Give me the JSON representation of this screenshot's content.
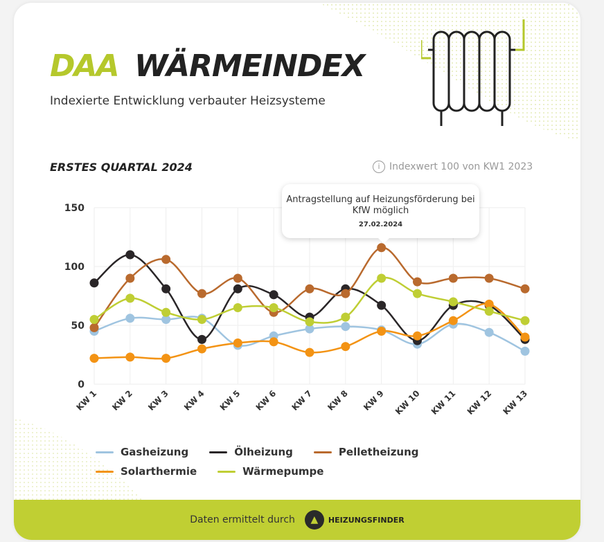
{
  "header": {
    "logo": "DAA",
    "title": "WÄRMEINDEX",
    "subtitle": "Indexierte Entwicklung verbauter Heizsysteme"
  },
  "section_title": "ERSTES QUARTAL 2024",
  "note": {
    "icon": "info-icon",
    "text": "Indexwert 100 von KW1 2023"
  },
  "tooltip": {
    "text": "Antragstellung auf Heizungsförderung bei KfW möglich",
    "date": "27.02.2024"
  },
  "footer": {
    "text": "Daten ermittelt durch",
    "brand": "HEIZUNGSFINDER",
    "icon": "flame-icon"
  },
  "chart_data": {
    "type": "line",
    "smooth": true,
    "ylim": [
      0,
      150
    ],
    "yticks": [
      0,
      50,
      100,
      150
    ],
    "grid": true,
    "legend": "bottom",
    "categories": [
      "KW 1",
      "KW 2",
      "KW 3",
      "KW 4",
      "KW 5",
      "KW 6",
      "KW 7",
      "KW 8",
      "KW 9",
      "KW 10",
      "KW 11",
      "KW 12",
      "KW 13"
    ],
    "series": [
      {
        "name": "Gasheizung",
        "color": "#9fc4e0",
        "values": [
          45,
          56,
          55,
          56,
          33,
          41,
          47,
          49,
          46,
          34,
          51,
          44,
          28
        ]
      },
      {
        "name": "Ölheizung",
        "color": "#2a2628",
        "values": [
          86,
          110,
          81,
          38,
          81,
          76,
          57,
          81,
          67,
          37,
          67,
          67,
          38
        ]
      },
      {
        "name": "Pelletheizung",
        "color": "#b96a2e",
        "values": [
          48,
          90,
          106,
          77,
          90,
          61,
          81,
          77,
          116,
          87,
          90,
          90,
          81
        ]
      },
      {
        "name": "Solarthermie",
        "color": "#f39314",
        "values": [
          22,
          23,
          22,
          30,
          35,
          36,
          27,
          32,
          45,
          41,
          54,
          68,
          40
        ]
      },
      {
        "name": "Wärmepumpe",
        "color": "#bfce34",
        "values": [
          55,
          73,
          61,
          55,
          65,
          65,
          53,
          57,
          90,
          77,
          70,
          62,
          54
        ]
      }
    ]
  }
}
